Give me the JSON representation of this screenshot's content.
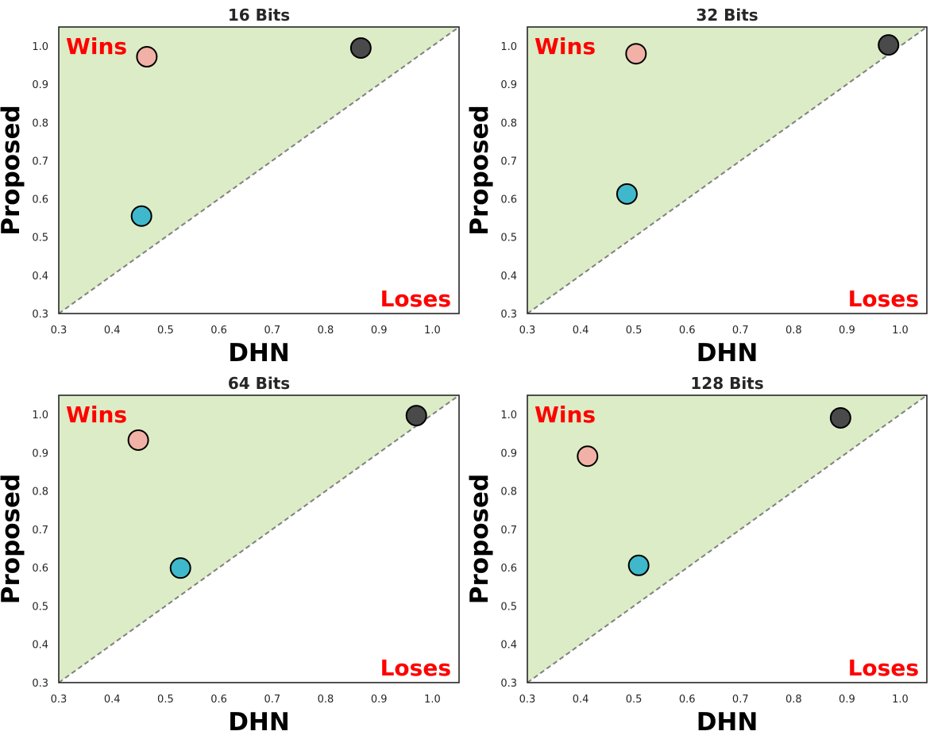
{
  "chart_data": [
    {
      "type": "scatter",
      "title": "16 Bits",
      "xlabel": "DHN",
      "ylabel": "Proposed",
      "xlim": [
        0.3,
        1.05
      ],
      "ylim": [
        0.3,
        1.05
      ],
      "xticks": [
        "0.3",
        "0.4",
        "0.5",
        "0.6",
        "0.7",
        "0.8",
        "0.9",
        "1.0"
      ],
      "yticks": [
        "0.3",
        "0.4",
        "0.5",
        "0.6",
        "0.7",
        "0.8",
        "0.9",
        "1.0"
      ],
      "region_labels": {
        "upper": "Wins",
        "lower": "Loses"
      },
      "points": [
        {
          "x": 0.465,
          "y": 0.972,
          "color": "#f2b1a6"
        },
        {
          "x": 0.866,
          "y": 0.995,
          "color": "#4a4a4a"
        },
        {
          "x": 0.455,
          "y": 0.555,
          "color": "#3fb8cc"
        }
      ]
    },
    {
      "type": "scatter",
      "title": "32 Bits",
      "xlabel": "DHN",
      "ylabel": "Proposed",
      "xlim": [
        0.3,
        1.05
      ],
      "ylim": [
        0.3,
        1.05
      ],
      "xticks": [
        "0.3",
        "0.4",
        "0.5",
        "0.6",
        "0.7",
        "0.8",
        "0.9",
        "1.0"
      ],
      "yticks": [
        "0.3",
        "0.4",
        "0.5",
        "0.6",
        "0.7",
        "0.8",
        "0.9",
        "1.0"
      ],
      "region_labels": {
        "upper": "Wins",
        "lower": "Loses"
      },
      "points": [
        {
          "x": 0.504,
          "y": 0.98,
          "color": "#f2b1a6"
        },
        {
          "x": 0.978,
          "y": 1.003,
          "color": "#4a4a4a"
        },
        {
          "x": 0.487,
          "y": 0.613,
          "color": "#3fb8cc"
        }
      ]
    },
    {
      "type": "scatter",
      "title": "64 Bits",
      "xlabel": "DHN",
      "ylabel": "Proposed",
      "xlim": [
        0.3,
        1.05
      ],
      "ylim": [
        0.3,
        1.05
      ],
      "xticks": [
        "0.3",
        "0.4",
        "0.5",
        "0.6",
        "0.7",
        "0.8",
        "0.9",
        "1.0"
      ],
      "yticks": [
        "0.3",
        "0.4",
        "0.5",
        "0.6",
        "0.7",
        "0.8",
        "0.9",
        "1.0"
      ],
      "region_labels": {
        "upper": "Wins",
        "lower": "Loses"
      },
      "points": [
        {
          "x": 0.449,
          "y": 0.933,
          "color": "#f2b1a6"
        },
        {
          "x": 0.97,
          "y": 0.997,
          "color": "#4a4a4a"
        },
        {
          "x": 0.528,
          "y": 0.599,
          "color": "#3fb8cc"
        }
      ]
    },
    {
      "type": "scatter",
      "title": "128 Bits",
      "xlabel": "DHN",
      "ylabel": "Proposed",
      "xlim": [
        0.3,
        1.05
      ],
      "ylim": [
        0.3,
        1.05
      ],
      "xticks": [
        "0.3",
        "0.4",
        "0.5",
        "0.6",
        "0.7",
        "0.8",
        "0.9",
        "1.0"
      ],
      "yticks": [
        "0.3",
        "0.4",
        "0.5",
        "0.6",
        "0.7",
        "0.8",
        "0.9",
        "1.0"
      ],
      "region_labels": {
        "upper": "Wins",
        "lower": "Loses"
      },
      "points": [
        {
          "x": 0.413,
          "y": 0.891,
          "color": "#f2b1a6"
        },
        {
          "x": 0.888,
          "y": 0.991,
          "color": "#4a4a4a"
        },
        {
          "x": 0.509,
          "y": 0.606,
          "color": "#3fb8cc"
        }
      ]
    }
  ],
  "colors": {
    "wins_region": "#dcecc6",
    "diagonal": "#808080",
    "frame": "#262626",
    "marker_edge": "#000000",
    "region_text": "#ff0000"
  }
}
